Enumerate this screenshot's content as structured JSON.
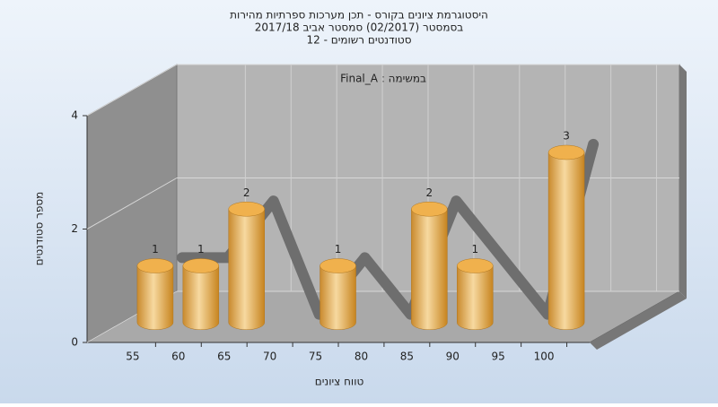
{
  "chart_data": {
    "type": "bar3d",
    "title": [
      "היסטוגרמת ציונים בקורס - תכן מערכות ספרתיות מהירות",
      "בסמסטר (02/2017) סמסטר אביב 2017/18",
      "סטודנטים רשומים - 12"
    ],
    "subtitle": "במשימה : Final_A",
    "x_label": "טווח ציונים",
    "y_label": "מספר סטודנטים",
    "categories": [
      "55",
      "60",
      "65",
      "70",
      "75",
      "80",
      "85",
      "90",
      "95",
      "100"
    ],
    "values": [
      1,
      1,
      2,
      0,
      1,
      0,
      2,
      1,
      0,
      3
    ],
    "color": "#e8a33c",
    "line_color": "#6e6e6e",
    "ylim": [
      0,
      4
    ],
    "yticks": [
      0,
      2,
      4
    ],
    "grid": true
  }
}
